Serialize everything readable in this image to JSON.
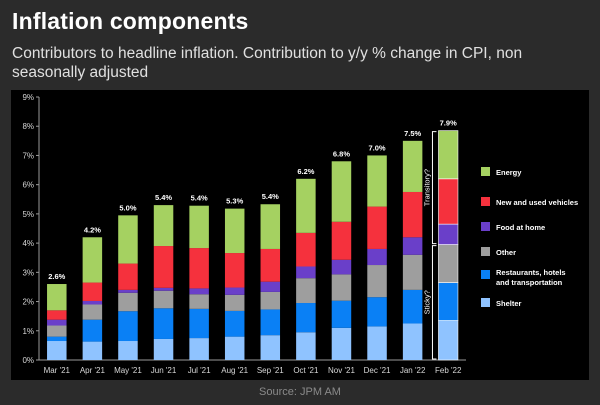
{
  "header": {
    "title": "Inflation components",
    "subtitle": "Contributors to headline inflation. Contribution to y/y % change in CPI, non seasonally adjusted"
  },
  "footer": {
    "source": "Source: JPM AM"
  },
  "chart_data": {
    "type": "bar",
    "stacked": true,
    "categories": [
      "Mar '21",
      "Apr '21",
      "May '21",
      "Jun '21",
      "Jul '21",
      "Aug '21",
      "Sep '21",
      "Oct '21",
      "Nov '21",
      "Dec '21",
      "Jan '22",
      "Feb '22"
    ],
    "totals": [
      "2.6%",
      "4.2%",
      "5.0%",
      "5.4%",
      "5.4%",
      "5.3%",
      "5.4%",
      "6.2%",
      "6.8%",
      "7.0%",
      "7.5%",
      "7.9%"
    ],
    "ylim": [
      0,
      9
    ],
    "yticks": [
      "0%",
      "1%",
      "2%",
      "3%",
      "4%",
      "5%",
      "6%",
      "7%",
      "8%",
      "9%"
    ],
    "series": [
      {
        "name": "Shelter",
        "color": "#8fc3ff",
        "values": [
          0.65,
          0.63,
          0.65,
          0.72,
          0.75,
          0.8,
          0.85,
          0.95,
          1.1,
          1.15,
          1.25,
          1.35
        ]
      },
      {
        "name": "Restaurants, hotels and transportation",
        "color": "#0a80f5",
        "values": [
          0.15,
          0.75,
          1.02,
          1.05,
          1.0,
          0.88,
          0.88,
          1.0,
          0.93,
          1.0,
          1.15,
          1.3
        ]
      },
      {
        "name": "Other",
        "color": "#9e9e9e",
        "values": [
          0.38,
          0.52,
          0.63,
          0.6,
          0.5,
          0.55,
          0.6,
          0.85,
          0.9,
          1.1,
          1.2,
          1.3
        ]
      },
      {
        "name": "Food  at home",
        "color": "#6a3fc9",
        "values": [
          0.2,
          0.12,
          0.1,
          0.1,
          0.2,
          0.25,
          0.35,
          0.4,
          0.5,
          0.55,
          0.6,
          0.7
        ]
      },
      {
        "name": "New and used vehicles",
        "color": "#f5313d",
        "values": [
          0.32,
          0.63,
          0.9,
          1.43,
          1.38,
          1.18,
          1.12,
          1.15,
          1.3,
          1.45,
          1.55,
          1.55
        ]
      },
      {
        "name": "Energy",
        "color": "#a5d161",
        "values": [
          0.9,
          1.55,
          1.65,
          1.4,
          1.45,
          1.52,
          1.53,
          1.85,
          2.07,
          1.75,
          1.75,
          1.65
        ]
      }
    ],
    "legend_placement": "right",
    "legend": [
      "Energy",
      "New and used vehicles",
      "Food  at home",
      "Other",
      "Restaurants, hotels and transportation",
      "Shelter"
    ],
    "brackets": [
      {
        "label": "Transitory?",
        "from_series": "Food  at home",
        "to_series": "Energy"
      },
      {
        "label": "Sticky?",
        "from_series": "Shelter",
        "to_series": "Other"
      }
    ],
    "grid": false
  }
}
